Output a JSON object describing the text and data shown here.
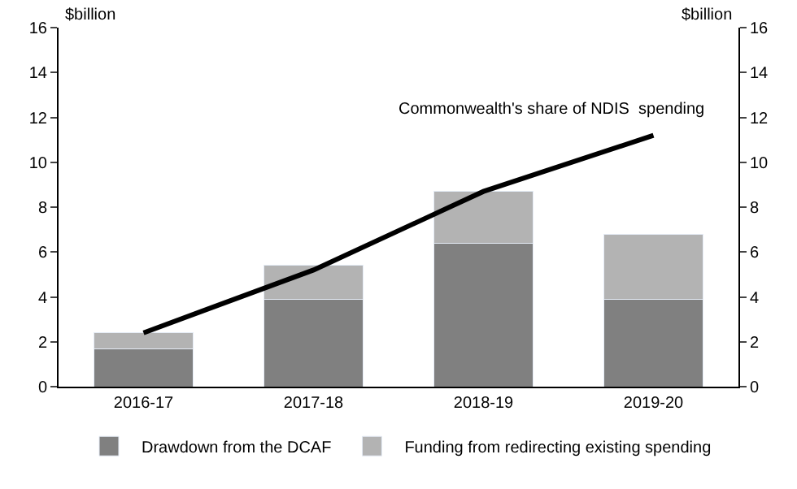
{
  "chart_data": {
    "type": "bar",
    "stacked": true,
    "categories": [
      "2016-17",
      "2017-18",
      "2018-19",
      "2019-20"
    ],
    "series": [
      {
        "name": "Drawdown from the DCAF",
        "color": "#808080",
        "values": [
          1.7,
          3.9,
          6.4,
          3.9
        ]
      },
      {
        "name": "Funding from redirecting existing spending",
        "color": "#b3b3b3",
        "values": [
          0.7,
          1.5,
          2.3,
          2.9
        ]
      },
      {
        "name": "Commonwealth's share of NDIS  spending",
        "type": "line",
        "color": "#000000",
        "values": [
          2.4,
          5.2,
          8.7,
          11.2
        ]
      }
    ],
    "ylabel": "$billion",
    "y2label": "$billion",
    "ylim": [
      0,
      16
    ],
    "yticks": [
      0,
      2,
      4,
      6,
      8,
      10,
      12,
      14,
      16
    ],
    "y2lim": [
      0,
      16
    ],
    "y2ticks": [
      0,
      2,
      4,
      6,
      8,
      10,
      12,
      14,
      16
    ],
    "legend": "bottom",
    "marker": "none",
    "line_style": "solid"
  }
}
